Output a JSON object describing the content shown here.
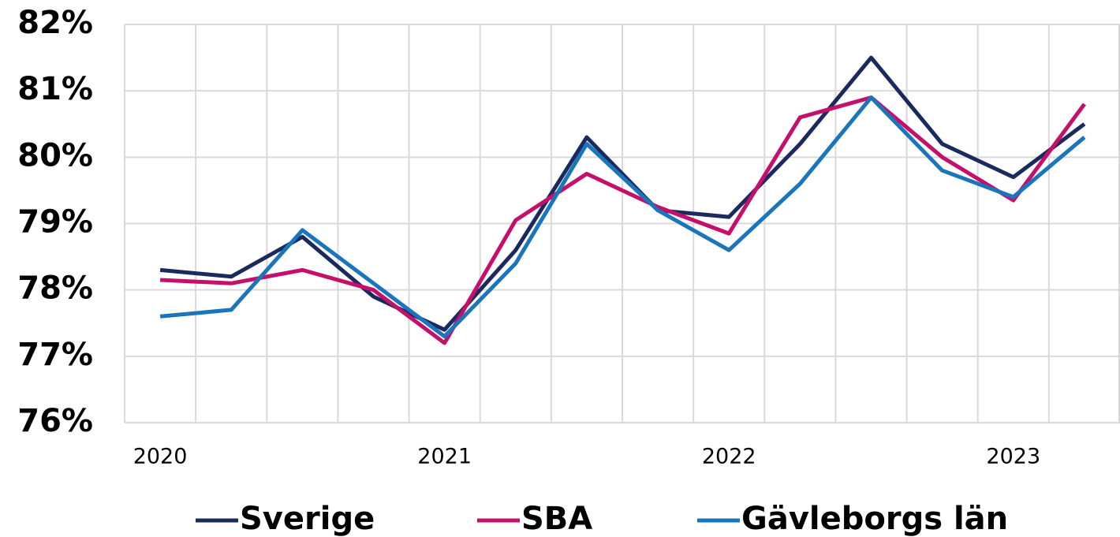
{
  "chart_data": {
    "type": "line",
    "categories": [
      "2020",
      null,
      null,
      null,
      "2021",
      null,
      null,
      null,
      "2022",
      null,
      null,
      null,
      "2023",
      null
    ],
    "series": [
      {
        "name": "Sverige",
        "color": "#1b2a5e",
        "values": [
          78.3,
          78.2,
          78.8,
          77.9,
          77.4,
          78.6,
          80.3,
          79.2,
          79.1,
          80.2,
          81.5,
          80.2,
          79.7,
          80.5
        ]
      },
      {
        "name": "SBA",
        "color": "#c4106b",
        "values": [
          78.15,
          78.1,
          78.3,
          78.0,
          77.2,
          79.05,
          79.75,
          79.25,
          78.85,
          80.6,
          80.9,
          80.0,
          79.35,
          80.8
        ]
      },
      {
        "name": "Gävleborgs län",
        "color": "#1a75bb",
        "values": [
          77.6,
          77.7,
          78.9,
          78.1,
          77.3,
          78.4,
          80.2,
          79.2,
          78.6,
          79.6,
          80.9,
          79.8,
          79.4,
          80.3
        ]
      }
    ],
    "ylim": [
      76,
      82
    ],
    "yticks": [
      {
        "value": 76,
        "label": "76%"
      },
      {
        "value": 77,
        "label": "77%"
      },
      {
        "value": 78,
        "label": "78%"
      },
      {
        "value": 79,
        "label": "79%"
      },
      {
        "value": 80,
        "label": "80%"
      },
      {
        "value": 81,
        "label": "81%"
      },
      {
        "value": 82,
        "label": "82%"
      }
    ],
    "grid": true,
    "legend": "bottom"
  }
}
